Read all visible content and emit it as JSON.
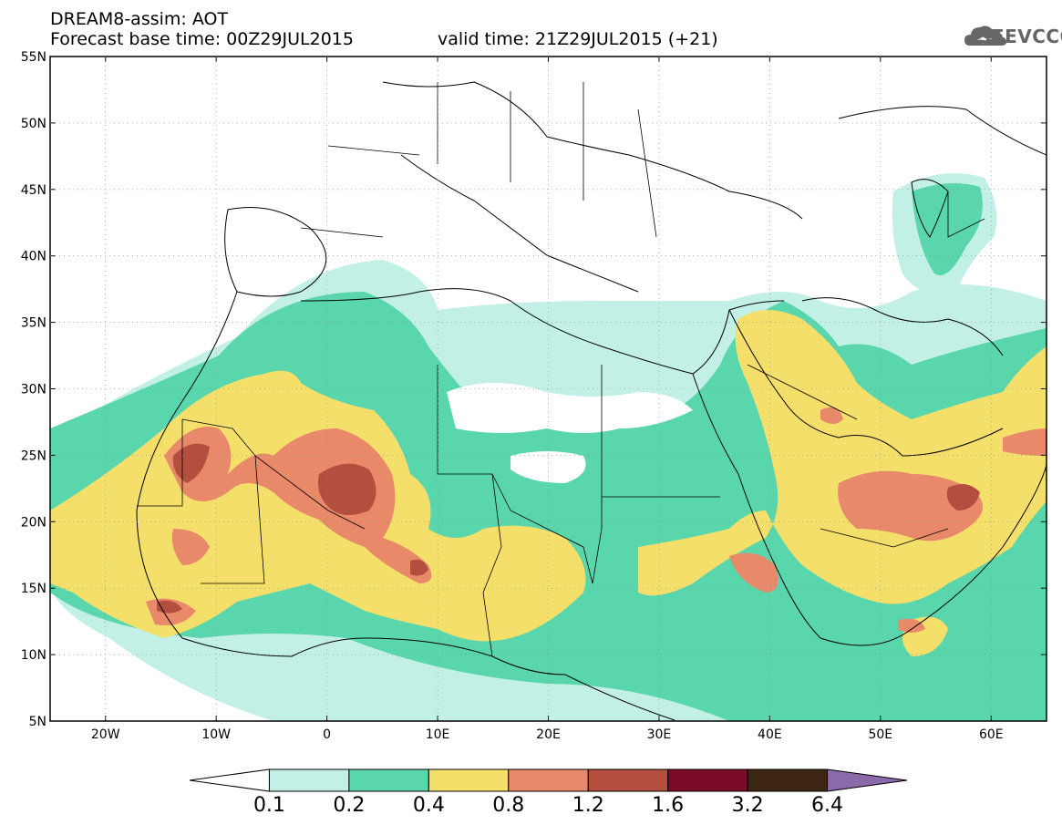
{
  "header": {
    "title": "DREAM8-assim: AOT",
    "base_time": "Forecast base time: 00Z29JUL2015",
    "valid_time": "valid time: 21Z29JUL2015 (+21)"
  },
  "logo": {
    "text": "SEEVCCC",
    "icon": "cloud-icon"
  },
  "map": {
    "lat_labels": [
      "55N",
      "50N",
      "45N",
      "40N",
      "35N",
      "30N",
      "25N",
      "20N",
      "15N",
      "10N",
      "5N"
    ],
    "lon_labels": [
      "20W",
      "10W",
      "0",
      "10E",
      "20E",
      "30E",
      "40E",
      "50E",
      "60E"
    ],
    "lon_range": [
      -25,
      65
    ],
    "lat_range": [
      5,
      55
    ]
  },
  "legend": {
    "labels": [
      "0.1",
      "0.2",
      "0.4",
      "0.8",
      "1.2",
      "1.6",
      "3.2",
      "6.4"
    ],
    "colors": [
      "#ffffff",
      "#c2f0e6",
      "#5ad6ad",
      "#f5df6b",
      "#e8896a",
      "#b44e3e",
      "#7a0a28",
      "#3c2512",
      "#8a6aa8"
    ]
  }
}
